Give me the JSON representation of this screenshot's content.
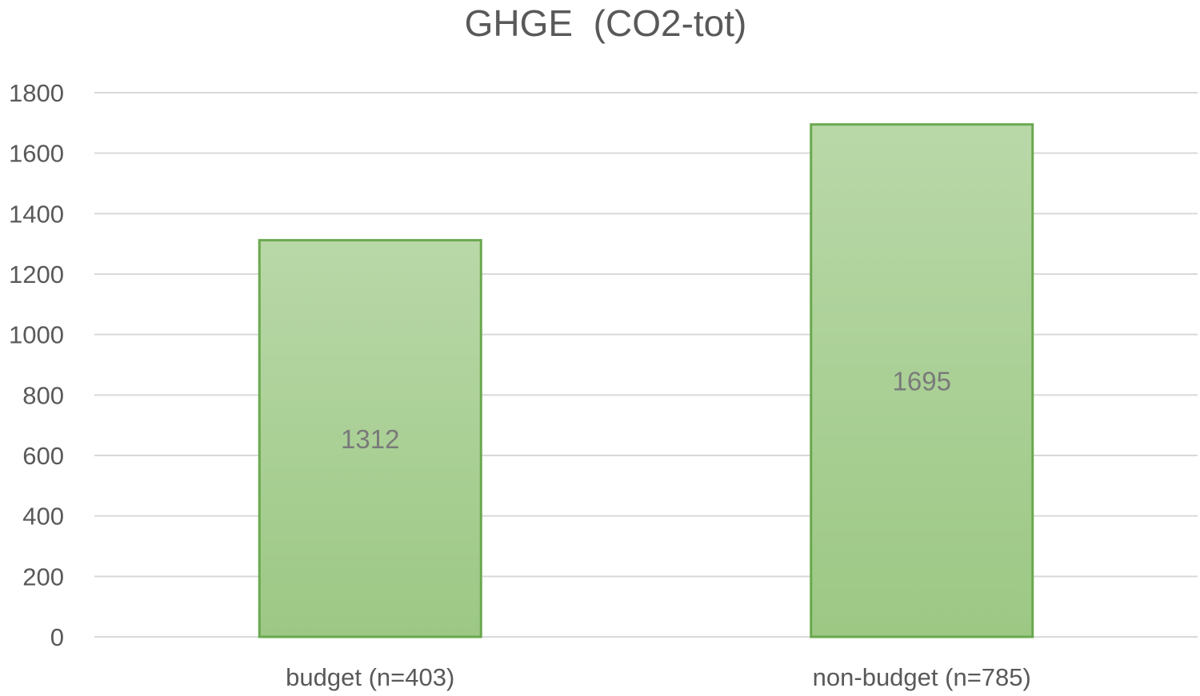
{
  "chart_data": {
    "type": "bar",
    "title": "GHGE  (CO2-tot)",
    "xlabel": "",
    "ylabel": "",
    "categories": [
      "budget (n=403)",
      "non-budget (n=785)"
    ],
    "values": [
      1312,
      1695
    ],
    "data_labels": [
      "1312",
      "1695"
    ],
    "ylim": [
      0,
      1800
    ],
    "yticks": [
      0,
      200,
      400,
      600,
      800,
      1000,
      1200,
      1400,
      1600,
      1800
    ],
    "grid": true,
    "legend": "none",
    "colors": {
      "bar_fill_top": "#b9d8a8",
      "bar_fill_bottom": "#9cc884",
      "bar_stroke": "#6aa84f",
      "grid": "#d9d9d9",
      "text": "#595959"
    }
  }
}
